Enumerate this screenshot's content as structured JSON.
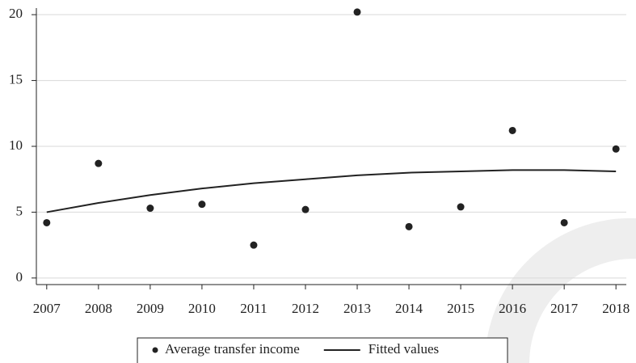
{
  "chart_data": {
    "type": "scatter",
    "x": [
      2007,
      2008,
      2009,
      2010,
      2011,
      2012,
      2013,
      2014,
      2015,
      2016,
      2017,
      2018
    ],
    "series": [
      {
        "name": "Average transfer income",
        "type": "scatter",
        "color": "#222222",
        "values": [
          4.2,
          8.7,
          5.3,
          5.6,
          2.5,
          5.2,
          20.2,
          3.9,
          5.4,
          11.2,
          4.2,
          9.8
        ]
      },
      {
        "name": "Fitted values",
        "type": "line",
        "color": "#222222",
        "values": [
          5.0,
          5.7,
          6.3,
          6.8,
          7.2,
          7.5,
          7.8,
          8.0,
          8.1,
          8.2,
          8.2,
          8.1
        ]
      }
    ],
    "xlim": [
      2006.8,
      2018.2
    ],
    "xticks": [
      2007,
      2008,
      2009,
      2010,
      2011,
      2012,
      2013,
      2014,
      2015,
      2016,
      2017,
      2018
    ],
    "ylim": [
      -0.5,
      20.5
    ],
    "yticks": [
      0,
      5,
      10,
      15,
      20
    ],
    "grid": true,
    "legend": "bottom"
  }
}
